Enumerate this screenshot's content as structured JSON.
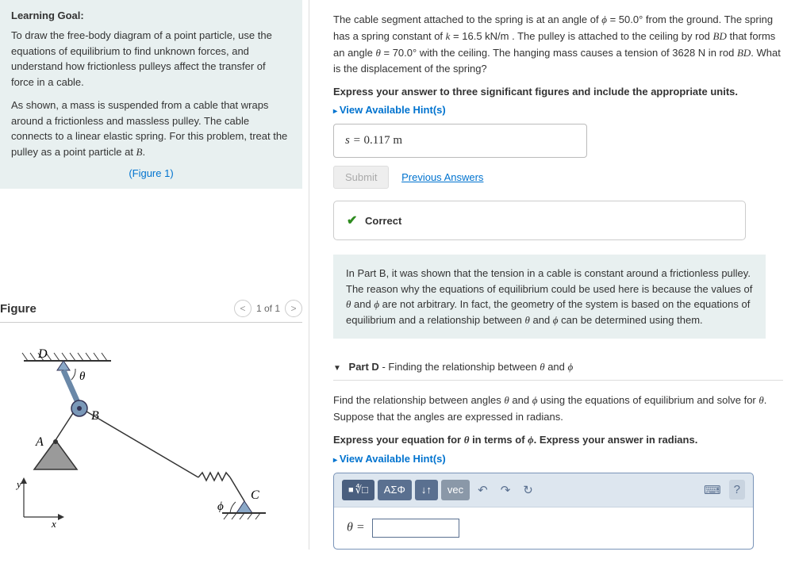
{
  "learning_goal": {
    "heading": "Learning Goal:",
    "p1": "To draw the free-body diagram of a point particle, use the equations of equilibrium to find unknown forces, and understand how frictionless pulleys affect the transfer of force in a cable.",
    "p2_a": "As shown, a mass is suspended from a cable that wraps around a frictionless and massless pulley. The cable connects to a linear elastic spring. For this problem, treat the pulley as a point particle at ",
    "p2_b": "B",
    "p2_c": ".",
    "figure_link": "(Figure 1)"
  },
  "figure": {
    "title": "Figure",
    "counter": "1 of 1",
    "labels": {
      "D": "D",
      "B": "B",
      "A": "A",
      "C": "C",
      "theta": "θ",
      "phi": "ϕ",
      "x": "x",
      "y": "y"
    }
  },
  "problem": {
    "text_html": "The cable segment attached to the spring is at an angle of <span class='ital'>ϕ</span> = 50.0° from the ground. The spring has a spring constant of <span class='ital'>k</span> = 16.5 kN/m . The pulley is attached to the ceiling by rod <span class='ital'>BD</span> that forms an angle <span class='ital'>θ</span> = 70.0° with the ceiling. The hanging mass causes a tension of 3628 N in rod <span class='ital'>BD</span>. What is the displacement of the spring?",
    "instruction": "Express your answer to three significant figures and include the appropriate units.",
    "hints": "View Available Hint(s)",
    "answer_prefix": "s = ",
    "answer_value": "0.117 m",
    "submit": "Submit",
    "prev": "Previous Answers",
    "correct": "Correct"
  },
  "info_text_html": "In Part B, it was shown that the tension in a cable is constant around a frictionless pulley. The reason why the equations of equilibrium could be used here is because the values of <span class='ital'>θ</span> and <span class='ital'>ϕ</span> are not arbitrary. In fact, the geometry of the system is based on the equations of equilibrium and a relationship between <span class='ital'>θ</span> and <span class='ital'>ϕ</span> can be determined using them.",
  "partD": {
    "label": "Part D",
    "title_html": " - Finding the relationship between <span class='ital'>θ</span> and <span class='ital'>ϕ</span>",
    "q_html": "Find the relationship between angles <span class='ital'>θ</span> and <span class='ital'>ϕ</span> using the equations of equilibrium and solve for <span class='ital'>θ</span>. Suppose that the angles are expressed in radians.",
    "instruction_html": "Express your equation for <span class='ital'>θ</span> in terms of <span class='ital'>ϕ</span>. Express your answer in radians.",
    "hints": "View Available Hint(s)",
    "toolbar": {
      "templates": "∜□",
      "greek": "ΑΣΦ",
      "updown": "↓↑",
      "vec": "vec",
      "undo": "↶",
      "redo": "↷",
      "reset": "↻",
      "keyboard": "⌨",
      "help": "?"
    },
    "answer_label": "θ ="
  },
  "colors": {
    "panel_bg": "#e8f0f0",
    "link": "#0073cf",
    "correct": "#2e8b1f",
    "toolbar_bg": "#dde6ef",
    "toolbar_btn": "#5a7090"
  }
}
